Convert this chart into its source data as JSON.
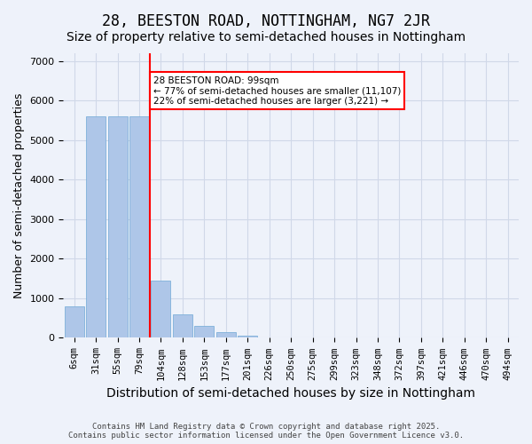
{
  "title": "28, BEESTON ROAD, NOTTINGHAM, NG7 2JR",
  "subtitle": "Size of property relative to semi-detached houses in Nottingham",
  "xlabel": "Distribution of semi-detached houses by size in Nottingham",
  "ylabel": "Number of semi-detached properties",
  "categories": [
    "6sqm",
    "31sqm",
    "55sqm",
    "79sqm",
    "104sqm",
    "128sqm",
    "153sqm",
    "177sqm",
    "201sqm",
    "226sqm",
    "250sqm",
    "275sqm",
    "299sqm",
    "323sqm",
    "348sqm",
    "372sqm",
    "397sqm",
    "421sqm",
    "446sqm",
    "470sqm",
    "494sqm"
  ],
  "values": [
    800,
    5600,
    5600,
    5600,
    1450,
    600,
    300,
    150,
    60,
    0,
    0,
    0,
    0,
    0,
    0,
    0,
    0,
    0,
    0,
    0,
    0
  ],
  "bar_color": "#AEC6E8",
  "bar_edge_color": "#6FA8D6",
  "grid_color": "#D0D8E8",
  "background_color": "#EEF2FA",
  "property_line_x": 4,
  "property_sqm": 99,
  "annotation_text": "28 BEESTON ROAD: 99sqm\n← 77% of semi-detached houses are smaller (11,107)\n22% of semi-detached houses are larger (3,221) →",
  "annotation_box_color": "white",
  "annotation_box_edge_color": "red",
  "vline_color": "red",
  "footer": "Contains HM Land Registry data © Crown copyright and database right 2025.\nContains public sector information licensed under the Open Government Licence v3.0.",
  "ylim": [
    0,
    7200
  ],
  "title_fontsize": 12,
  "subtitle_fontsize": 10,
  "xlabel_fontsize": 10,
  "ylabel_fontsize": 9,
  "tick_fontsize": 7.5
}
